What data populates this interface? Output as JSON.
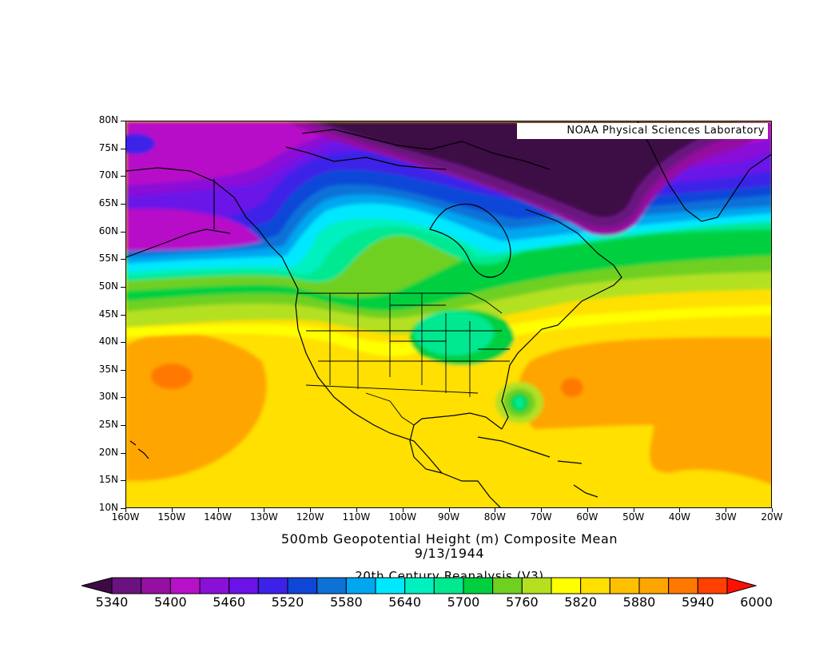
{
  "credit": "NOAA Physical Sciences Laboratory",
  "lat_labels": [
    "80N",
    "75N",
    "70N",
    "65N",
    "60N",
    "55N",
    "50N",
    "45N",
    "40N",
    "35N",
    "30N",
    "25N",
    "20N",
    "15N",
    "10N"
  ],
  "lon_labels": [
    "160W",
    "150W",
    "140W",
    "130W",
    "120W",
    "110W",
    "100W",
    "90W",
    "80W",
    "70W",
    "60W",
    "50W",
    "40W",
    "30W",
    "20W"
  ],
  "title": "500mb Geopotential Height (m) Composite Mean",
  "date": "9/13/1944",
  "dataset": "20th Century Reanalysis (V3)",
  "colorbar": {
    "labels": [
      "5340",
      "5400",
      "5460",
      "5520",
      "5580",
      "5640",
      "5700",
      "5760",
      "5820",
      "5880",
      "5940",
      "6000"
    ],
    "colors": [
      "#3d0a45",
      "#6a1280",
      "#9410a0",
      "#b810c8",
      "#8a10d8",
      "#6a12e8",
      "#3c22e8",
      "#1046d8",
      "#0c72d8",
      "#00a6f0",
      "#00e8ff",
      "#00f0c0",
      "#00e890",
      "#00d040",
      "#70d020",
      "#b4e020",
      "#ffff00",
      "#ffe000",
      "#ffc000",
      "#ffa500",
      "#ff7800",
      "#ff4000",
      "#ff1000"
    ]
  }
}
